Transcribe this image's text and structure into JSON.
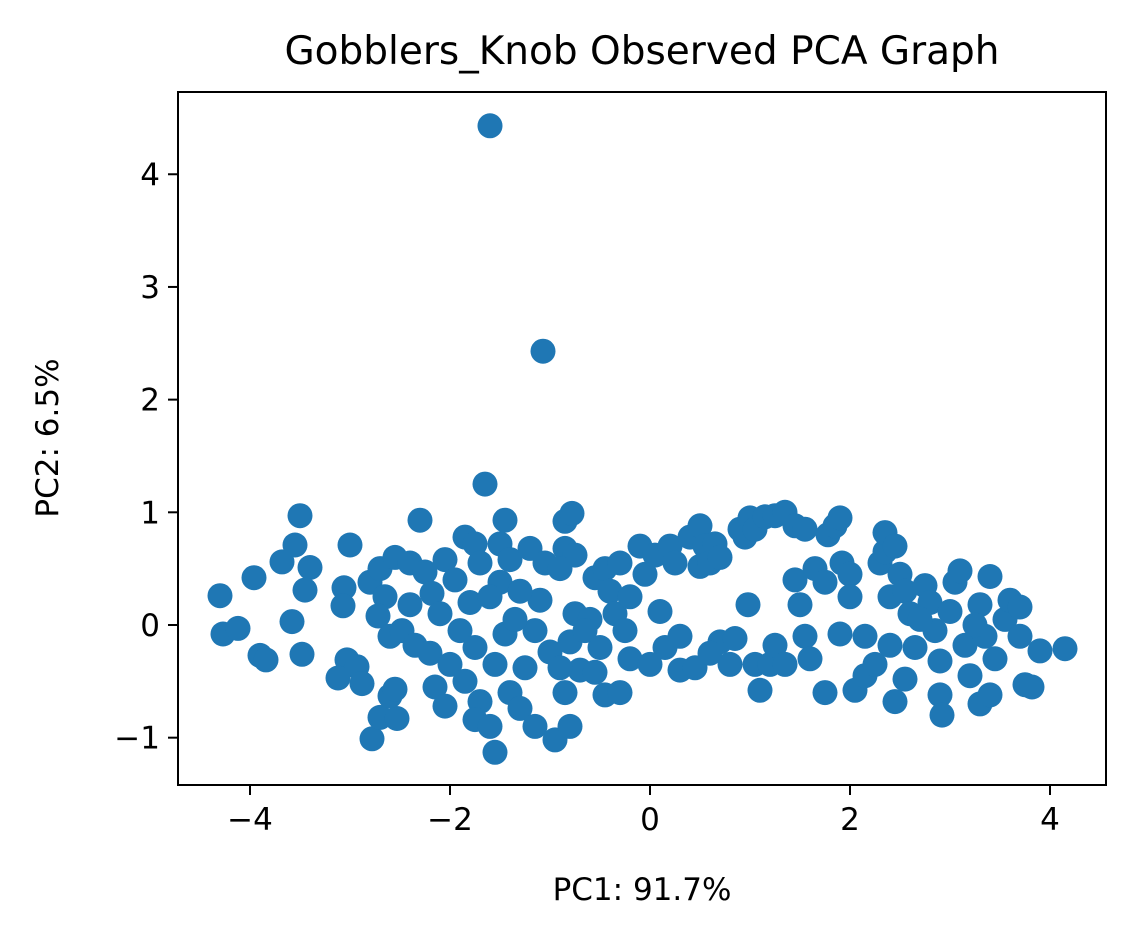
{
  "chart_data": {
    "type": "scatter",
    "title": "Gobblers_Knob Observed PCA Graph",
    "xlabel": "PC1: 91.7%",
    "ylabel": "PC2: 6.5%",
    "xlim": [
      -4.72,
      4.56
    ],
    "ylim": [
      -1.42,
      4.73
    ],
    "xticks": [
      {
        "value": -4,
        "label": "−4"
      },
      {
        "value": -2,
        "label": "−2"
      },
      {
        "value": 0,
        "label": "0"
      },
      {
        "value": 2,
        "label": "2"
      },
      {
        "value": 4,
        "label": "4"
      }
    ],
    "yticks": [
      {
        "value": -1,
        "label": "−1"
      },
      {
        "value": 0,
        "label": "0"
      },
      {
        "value": 1,
        "label": "1"
      },
      {
        "value": 2,
        "label": "2"
      },
      {
        "value": 3,
        "label": "3"
      },
      {
        "value": 4,
        "label": "4"
      }
    ],
    "grid": false,
    "marker_color": "#1f77b4",
    "points": [
      {
        "x": -1.6,
        "y": 4.43
      },
      {
        "x": -1.07,
        "y": 2.43
      },
      {
        "x": -1.65,
        "y": 1.25
      },
      {
        "x": -4.3,
        "y": 0.26
      },
      {
        "x": -4.27,
        "y": -0.08
      },
      {
        "x": -4.12,
        "y": -0.03
      },
      {
        "x": -3.96,
        "y": 0.42
      },
      {
        "x": -3.9,
        "y": -0.27
      },
      {
        "x": -3.84,
        "y": -0.31
      },
      {
        "x": -3.68,
        "y": 0.56
      },
      {
        "x": -3.55,
        "y": 0.71
      },
      {
        "x": -3.5,
        "y": 0.97
      },
      {
        "x": -3.4,
        "y": 0.51
      },
      {
        "x": -3.45,
        "y": 0.31
      },
      {
        "x": -3.58,
        "y": 0.03
      },
      {
        "x": -3.48,
        "y": -0.26
      },
      {
        "x": -3.0,
        "y": 0.71
      },
      {
        "x": -3.06,
        "y": 0.33
      },
      {
        "x": -3.07,
        "y": 0.17
      },
      {
        "x": -3.03,
        "y": -0.31
      },
      {
        "x": -2.93,
        "y": -0.37
      },
      {
        "x": -3.12,
        "y": -0.47
      },
      {
        "x": -2.88,
        "y": -0.52
      },
      {
        "x": -2.78,
        "y": -1.01
      },
      {
        "x": -2.7,
        "y": -0.82
      },
      {
        "x": -2.53,
        "y": -0.83
      },
      {
        "x": -2.6,
        "y": -0.63
      },
      {
        "x": -2.55,
        "y": -0.57
      },
      {
        "x": -2.8,
        "y": 0.38
      },
      {
        "x": -2.7,
        "y": 0.5
      },
      {
        "x": -2.55,
        "y": 0.6
      },
      {
        "x": -2.4,
        "y": 0.55
      },
      {
        "x": -2.25,
        "y": 0.47
      },
      {
        "x": -2.3,
        "y": 0.93
      },
      {
        "x": -2.65,
        "y": 0.25
      },
      {
        "x": -2.72,
        "y": 0.08
      },
      {
        "x": -2.6,
        "y": -0.1
      },
      {
        "x": -2.48,
        "y": -0.05
      },
      {
        "x": -2.4,
        "y": 0.18
      },
      {
        "x": -2.18,
        "y": 0.28
      },
      {
        "x": -2.35,
        "y": -0.18
      },
      {
        "x": -2.2,
        "y": -0.25
      },
      {
        "x": -2.15,
        "y": -0.55
      },
      {
        "x": -2.05,
        "y": -0.72
      },
      {
        "x": -2.0,
        "y": -0.35
      },
      {
        "x": -2.05,
        "y": 0.58
      },
      {
        "x": -1.85,
        "y": 0.78
      },
      {
        "x": -1.75,
        "y": 0.72
      },
      {
        "x": -1.7,
        "y": 0.55
      },
      {
        "x": -1.8,
        "y": 0.2
      },
      {
        "x": -1.9,
        "y": -0.05
      },
      {
        "x": -1.75,
        "y": -0.2
      },
      {
        "x": -1.85,
        "y": -0.5
      },
      {
        "x": -1.7,
        "y": -0.68
      },
      {
        "x": -1.75,
        "y": -0.84
      },
      {
        "x": -1.6,
        "y": -0.9
      },
      {
        "x": -1.55,
        "y": -1.13
      },
      {
        "x": -1.45,
        "y": 0.93
      },
      {
        "x": -1.5,
        "y": 0.72
      },
      {
        "x": -1.4,
        "y": 0.58
      },
      {
        "x": -1.5,
        "y": 0.38
      },
      {
        "x": -1.6,
        "y": 0.25
      },
      {
        "x": -1.45,
        "y": -0.08
      },
      {
        "x": -1.55,
        "y": -0.35
      },
      {
        "x": -1.4,
        "y": -0.6
      },
      {
        "x": -1.25,
        "y": -0.38
      },
      {
        "x": -1.3,
        "y": -0.74
      },
      {
        "x": -1.15,
        "y": -0.9
      },
      {
        "x": -1.2,
        "y": 0.68
      },
      {
        "x": -1.05,
        "y": 0.55
      },
      {
        "x": -1.1,
        "y": 0.22
      },
      {
        "x": -1.15,
        "y": -0.05
      },
      {
        "x": -1.0,
        "y": -0.24
      },
      {
        "x": -0.85,
        "y": 0.92
      },
      {
        "x": -0.78,
        "y": 0.99
      },
      {
        "x": -0.85,
        "y": 0.68
      },
      {
        "x": -0.75,
        "y": 0.62
      },
      {
        "x": -0.9,
        "y": 0.5
      },
      {
        "x": -0.95,
        "y": -1.02
      },
      {
        "x": -0.8,
        "y": -0.9
      },
      {
        "x": -0.85,
        "y": -0.6
      },
      {
        "x": -0.7,
        "y": -0.4
      },
      {
        "x": -0.75,
        "y": 0.1
      },
      {
        "x": -0.8,
        "y": -0.15
      },
      {
        "x": -0.6,
        "y": 0.05
      },
      {
        "x": -0.55,
        "y": 0.42
      },
      {
        "x": -0.45,
        "y": 0.5
      },
      {
        "x": -0.4,
        "y": 0.3
      },
      {
        "x": -0.3,
        "y": 0.55
      },
      {
        "x": -0.35,
        "y": 0.1
      },
      {
        "x": -0.5,
        "y": -0.2
      },
      {
        "x": -0.45,
        "y": -0.62
      },
      {
        "x": -0.3,
        "y": -0.6
      },
      {
        "x": -0.2,
        "y": -0.3
      },
      {
        "x": -0.1,
        "y": 0.7
      },
      {
        "x": -0.05,
        "y": 0.45
      },
      {
        "x": 0.05,
        "y": 0.62
      },
      {
        "x": 0.1,
        "y": 0.12
      },
      {
        "x": 0.15,
        "y": -0.2
      },
      {
        "x": 0.0,
        "y": -0.35
      },
      {
        "x": 0.2,
        "y": 0.7
      },
      {
        "x": 0.25,
        "y": 0.55
      },
      {
        "x": 0.3,
        "y": -0.4
      },
      {
        "x": 0.4,
        "y": 0.78
      },
      {
        "x": 0.5,
        "y": 0.88
      },
      {
        "x": 0.55,
        "y": 0.7
      },
      {
        "x": 0.5,
        "y": 0.52
      },
      {
        "x": 0.6,
        "y": 0.55
      },
      {
        "x": 0.65,
        "y": 0.72
      },
      {
        "x": 0.7,
        "y": 0.6
      },
      {
        "x": 0.45,
        "y": -0.38
      },
      {
        "x": 0.7,
        "y": -0.15
      },
      {
        "x": 0.8,
        "y": -0.35
      },
      {
        "x": 0.85,
        "y": -0.12
      },
      {
        "x": 0.9,
        "y": 0.85
      },
      {
        "x": 0.95,
        "y": 0.78
      },
      {
        "x": 1.0,
        "y": 0.95
      },
      {
        "x": 1.05,
        "y": 0.85
      },
      {
        "x": 1.15,
        "y": 0.96
      },
      {
        "x": 1.25,
        "y": 0.97
      },
      {
        "x": 1.35,
        "y": 1.0
      },
      {
        "x": 1.45,
        "y": 0.88
      },
      {
        "x": 1.55,
        "y": 0.85
      },
      {
        "x": 0.98,
        "y": 0.18
      },
      {
        "x": 1.05,
        "y": -0.35
      },
      {
        "x": 1.1,
        "y": -0.58
      },
      {
        "x": 1.2,
        "y": -0.35
      },
      {
        "x": 1.25,
        "y": -0.18
      },
      {
        "x": 1.35,
        "y": -0.35
      },
      {
        "x": 1.45,
        "y": 0.4
      },
      {
        "x": 1.5,
        "y": 0.18
      },
      {
        "x": 1.55,
        "y": -0.1
      },
      {
        "x": 1.65,
        "y": 0.5
      },
      {
        "x": 1.75,
        "y": 0.38
      },
      {
        "x": 1.78,
        "y": 0.8
      },
      {
        "x": 1.85,
        "y": 0.88
      },
      {
        "x": 1.9,
        "y": 0.95
      },
      {
        "x": 1.92,
        "y": 0.55
      },
      {
        "x": 2.0,
        "y": 0.45
      },
      {
        "x": 2.0,
        "y": 0.25
      },
      {
        "x": 1.75,
        "y": -0.6
      },
      {
        "x": 1.9,
        "y": -0.08
      },
      {
        "x": 2.05,
        "y": -0.58
      },
      {
        "x": 2.15,
        "y": -0.45
      },
      {
        "x": 2.25,
        "y": -0.35
      },
      {
        "x": 2.3,
        "y": 0.55
      },
      {
        "x": 2.35,
        "y": 0.65
      },
      {
        "x": 2.35,
        "y": 0.82
      },
      {
        "x": 2.45,
        "y": 0.7
      },
      {
        "x": 2.4,
        "y": 0.25
      },
      {
        "x": 2.5,
        "y": 0.45
      },
      {
        "x": 2.55,
        "y": 0.3
      },
      {
        "x": 2.4,
        "y": -0.18
      },
      {
        "x": 2.45,
        "y": -0.68
      },
      {
        "x": 2.55,
        "y": -0.48
      },
      {
        "x": 2.65,
        "y": -0.2
      },
      {
        "x": 2.6,
        "y": 0.1
      },
      {
        "x": 2.75,
        "y": 0.35
      },
      {
        "x": 2.8,
        "y": 0.2
      },
      {
        "x": 2.85,
        "y": -0.05
      },
      {
        "x": 2.9,
        "y": -0.32
      },
      {
        "x": 2.9,
        "y": -0.62
      },
      {
        "x": 2.92,
        "y": -0.8
      },
      {
        "x": 3.0,
        "y": 0.12
      },
      {
        "x": 3.05,
        "y": 0.38
      },
      {
        "x": 3.1,
        "y": 0.48
      },
      {
        "x": 3.15,
        "y": -0.18
      },
      {
        "x": 3.2,
        "y": -0.45
      },
      {
        "x": 3.3,
        "y": 0.18
      },
      {
        "x": 3.35,
        "y": -0.1
      },
      {
        "x": 3.3,
        "y": -0.7
      },
      {
        "x": 3.4,
        "y": -0.62
      },
      {
        "x": 3.4,
        "y": 0.43
      },
      {
        "x": 3.45,
        "y": -0.3
      },
      {
        "x": 3.55,
        "y": 0.05
      },
      {
        "x": 3.6,
        "y": 0.22
      },
      {
        "x": 3.7,
        "y": 0.16
      },
      {
        "x": 3.7,
        "y": -0.1
      },
      {
        "x": 3.75,
        "y": -0.53
      },
      {
        "x": 3.82,
        "y": -0.55
      },
      {
        "x": 3.9,
        "y": -0.23
      },
      {
        "x": 4.15,
        "y": -0.21
      },
      {
        "x": -2.1,
        "y": 0.1
      },
      {
        "x": -1.95,
        "y": 0.4
      },
      {
        "x": -1.3,
        "y": 0.3
      },
      {
        "x": -1.35,
        "y": 0.05
      },
      {
        "x": -0.65,
        "y": -0.05
      },
      {
        "x": -0.2,
        "y": 0.25
      },
      {
        "x": 0.3,
        "y": -0.1
      },
      {
        "x": 0.6,
        "y": -0.25
      },
      {
        "x": 1.6,
        "y": -0.3
      },
      {
        "x": 2.15,
        "y": -0.1
      },
      {
        "x": -0.25,
        "y": -0.05
      },
      {
        "x": -0.55,
        "y": -0.42
      },
      {
        "x": -0.9,
        "y": -0.38
      },
      {
        "x": 2.7,
        "y": 0.05
      },
      {
        "x": 3.25,
        "y": 0.0
      }
    ]
  }
}
